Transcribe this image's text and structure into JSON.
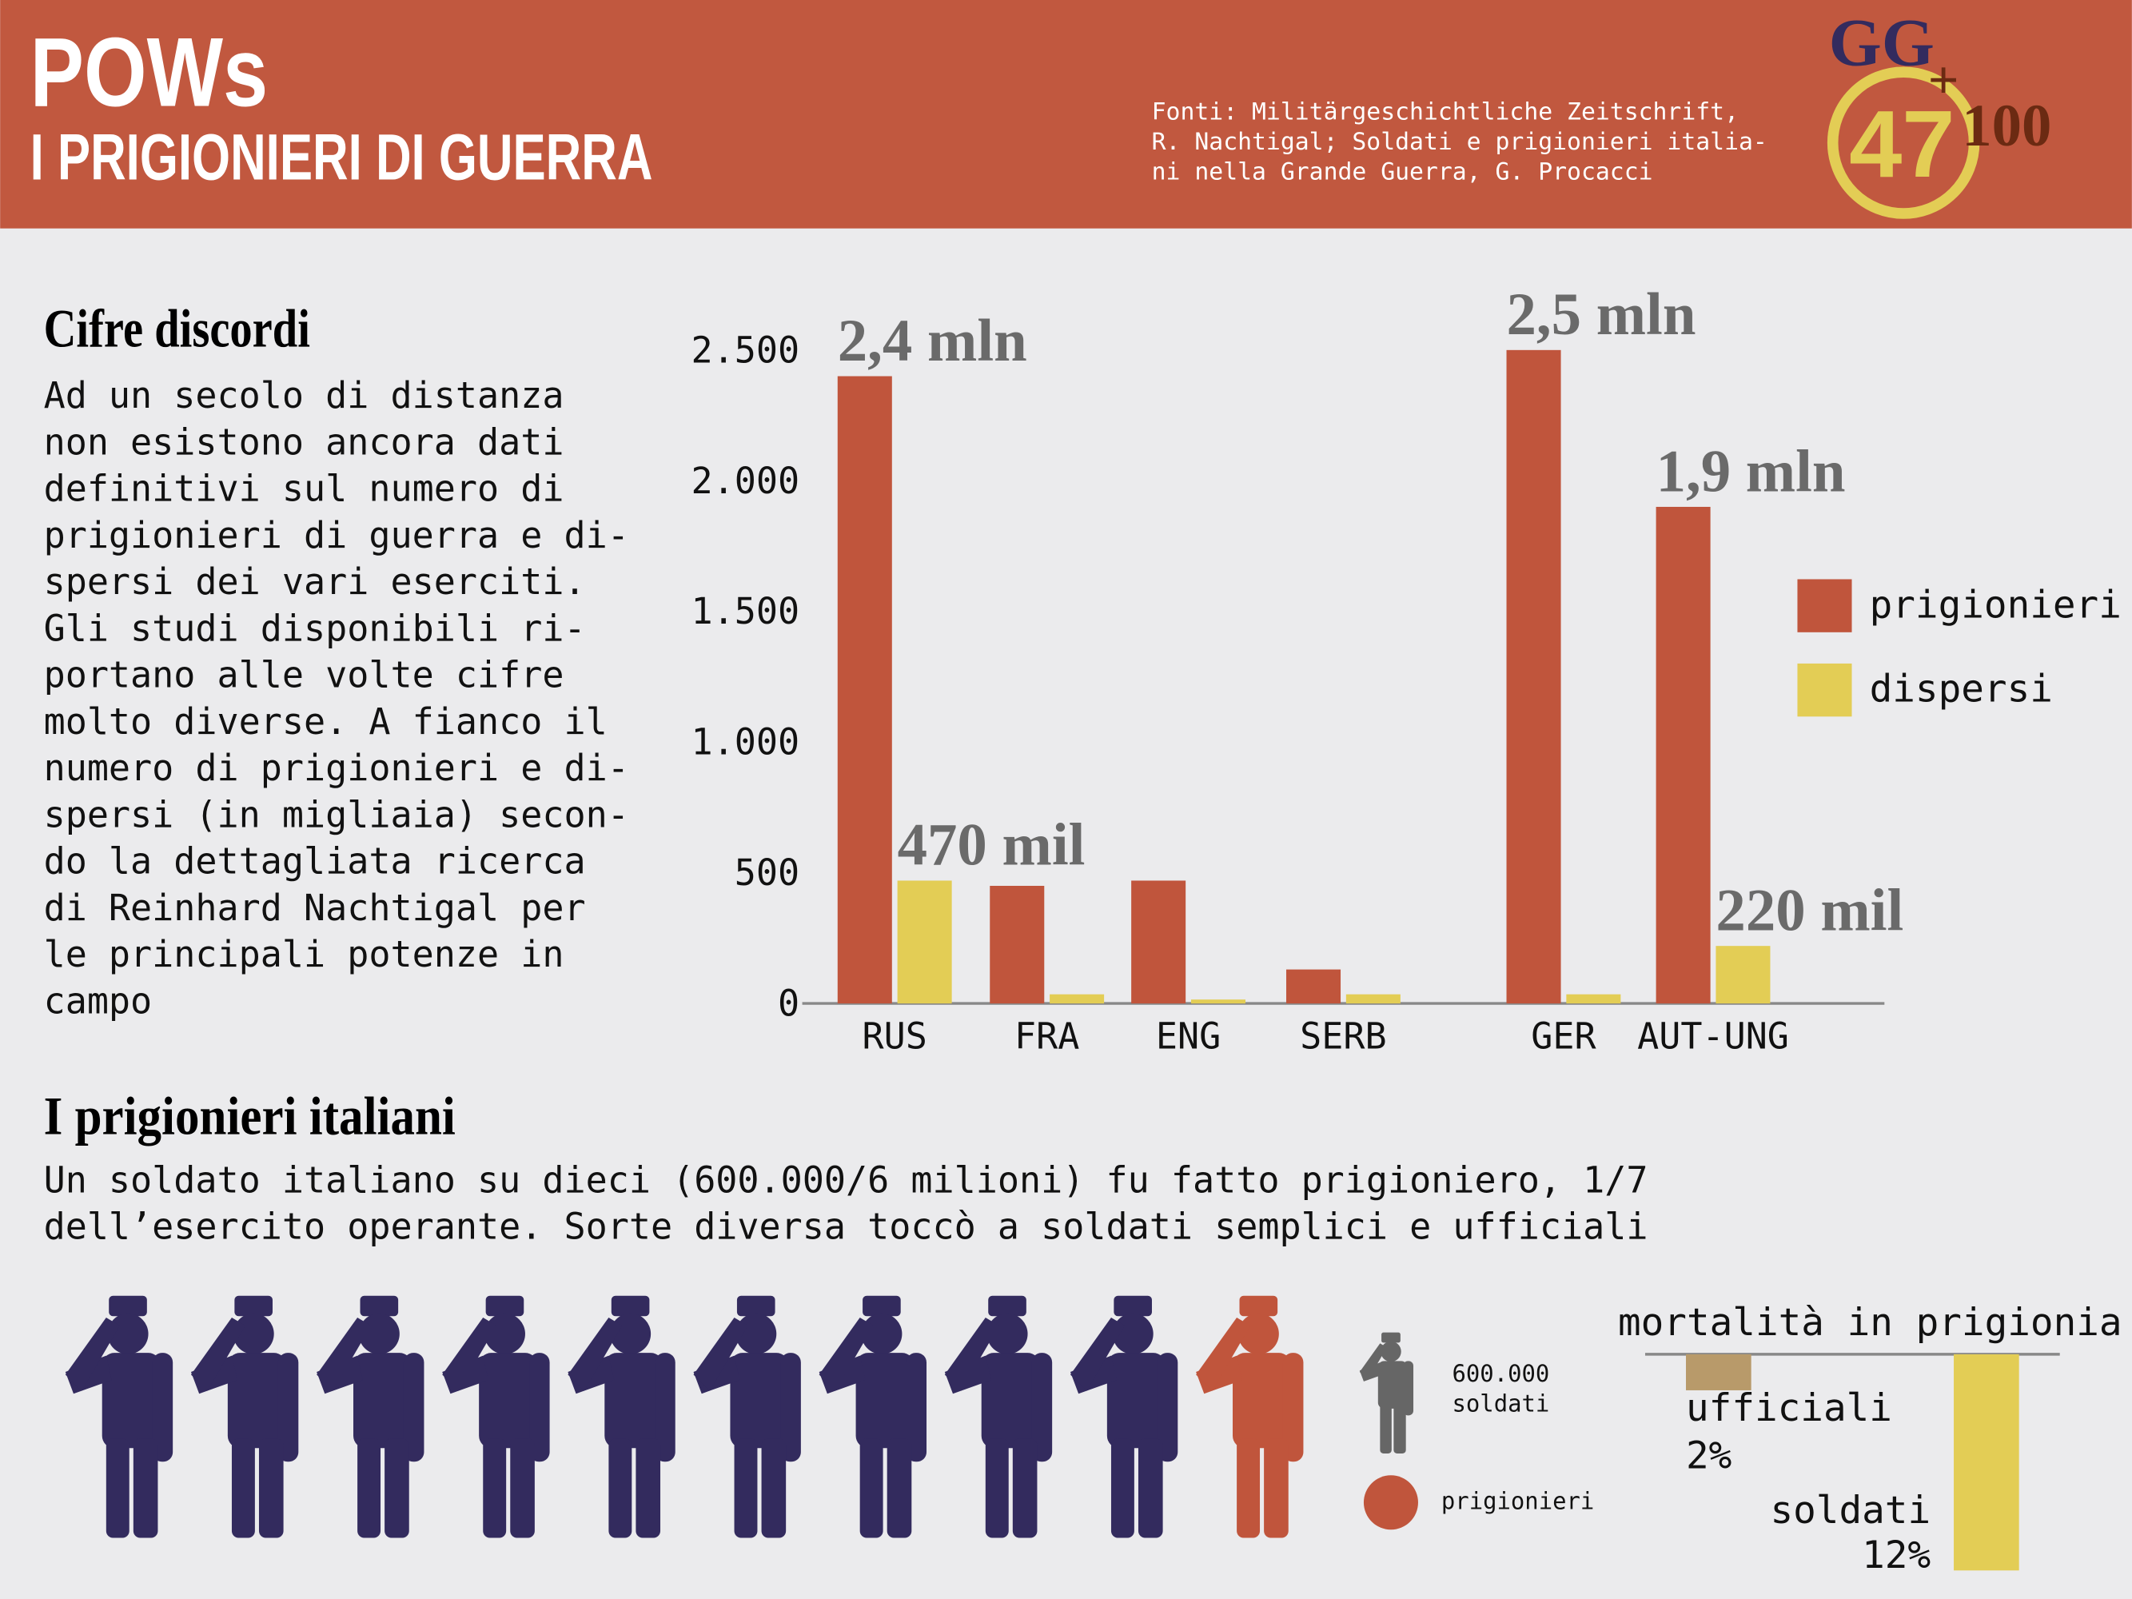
{
  "header": {
    "title": "POWs",
    "subtitle": "I PRIGIONIERI DI GUERRA",
    "sources": [
      "Fonti: Militärgeschichtliche Zeitschrift,",
      "R. Nachtigal; Soldati e prigionieri italia-",
      "ni nella Grande Guerra, G. Procacci"
    ],
    "logo": [
      "GG",
      "47",
      "+",
      "100"
    ]
  },
  "intro": {
    "title": "Cifre discordi",
    "lines": [
      "Ad un secolo di distanza",
      "non esistono ancora dati",
      "definitivi sul numero di",
      "prigionieri di guerra e di-",
      "spersi dei vari eserciti.",
      "Gli studi disponibili ri-",
      "portano alle volte cifre",
      "molto diverse. A fianco il",
      "numero di prigionieri e di-",
      "spersi (in migliaia) secon-",
      "do la dettagliata ricerca",
      "di Reinhard Nachtigal per",
      "le principali potenze in",
      "campo"
    ]
  },
  "italians": {
    "title": "I prigionieri italiani",
    "lines": [
      "Un soldato italiano su dieci (600.000/6 milioni) fu fatto prigioniero, 1/7",
      "dell’esercito operante. Sorte diversa toccò a soldati semplici e ufficiali"
    ]
  },
  "chart_data": [
    {
      "type": "bar",
      "categories": [
        "RUS",
        "FRA",
        "ENG",
        "SERB",
        "GER",
        "AUT-UNG"
      ],
      "series": [
        {
          "name": "prigionieri",
          "color": "#c0553c",
          "values": [
            2400,
            450,
            470,
            130,
            2500,
            1900
          ],
          "value_labels": [
            "2,4 mln",
            null,
            null,
            null,
            "2,5 mln",
            "1,9 mln"
          ]
        },
        {
          "name": "dispersi",
          "color": "#e3cd55",
          "values": [
            470,
            35,
            15,
            35,
            35,
            220
          ],
          "value_labels": [
            "470 mil",
            null,
            null,
            null,
            null,
            "220 mil"
          ]
        }
      ],
      "ylim": [
        0,
        2700
      ],
      "yticks": [
        0,
        500,
        {
          "value": 1000,
          "label": "1.000"
        },
        {
          "value": 1500,
          "label": "1.500"
        },
        {
          "value": 2000,
          "label": "2.000"
        },
        {
          "value": 2500,
          "label": "2.500"
        }
      ],
      "legend": "right"
    },
    {
      "type": "pictogram",
      "unit_label": [
        "600.000",
        "soldati"
      ],
      "categories": [
        null,
        "prigionieri"
      ],
      "values": [
        9,
        1
      ],
      "colors": [
        "#332b5e",
        "#c0553c"
      ],
      "unit_color": "#666666"
    },
    {
      "type": "bar",
      "title": "mortalità in prigionia",
      "categories": [
        "ufficiali",
        "soldati"
      ],
      "values": [
        2,
        12
      ],
      "value_labels": [
        "2%",
        "12%"
      ],
      "colors": [
        "#b89a6a",
        "#e3cd55"
      ]
    }
  ]
}
